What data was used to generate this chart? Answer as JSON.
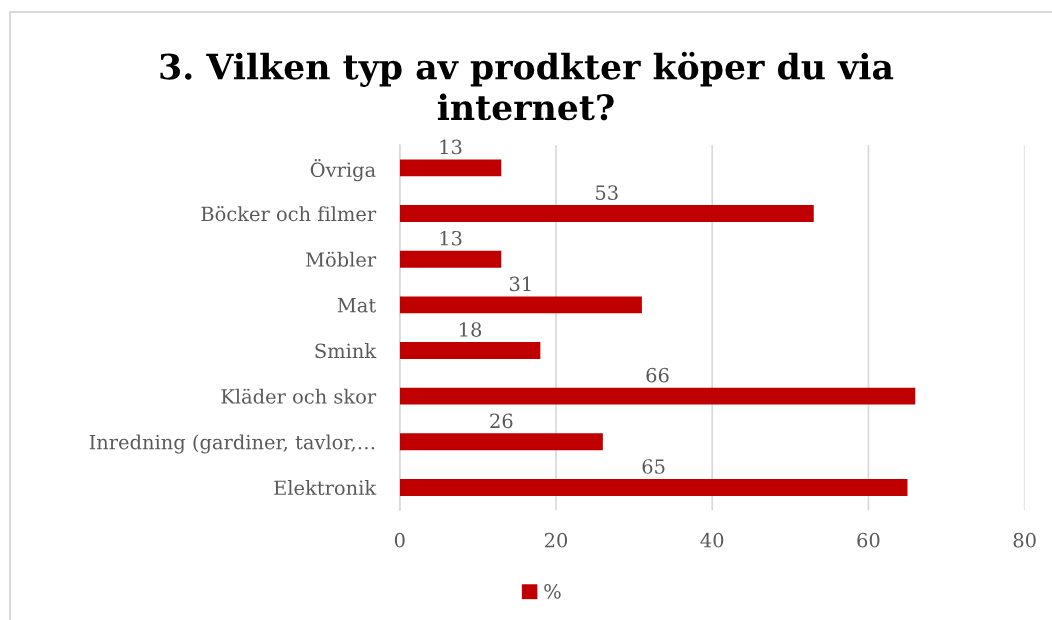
{
  "chart_data": {
    "type": "bar",
    "orientation": "horizontal",
    "title": "3. Vilken typ av prodkter köper du via internet?",
    "categories": [
      "Övriga",
      "Böcker och filmer",
      "Möbler",
      "Mat",
      "Smink",
      "Kläder och skor",
      "Inredning (gardiner, tavlor,…",
      "Elektronik"
    ],
    "series": [
      {
        "name": "%",
        "color": "#c00000",
        "values": [
          13,
          53,
          13,
          31,
          18,
          66,
          26,
          65
        ]
      }
    ],
    "xlim": [
      0,
      80
    ],
    "xticks": [
      0,
      20,
      40,
      60,
      80
    ],
    "grid": "x",
    "legend": "bottom",
    "data_labels": true
  }
}
